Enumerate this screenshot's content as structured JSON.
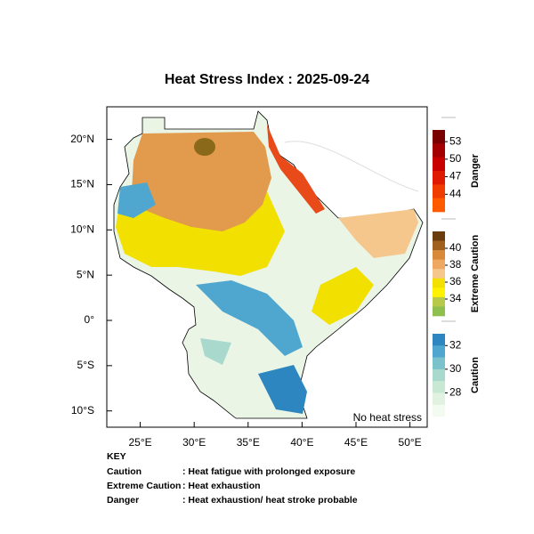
{
  "map": {
    "title": "Heat Stress Index : 2025-09-24",
    "xlim": [
      21.9,
      51.6
    ],
    "ylim": [
      -11.8,
      23.6
    ],
    "xticks": [
      {
        "value": 25,
        "label": "25°E"
      },
      {
        "value": 30,
        "label": "30°E"
      },
      {
        "value": 35,
        "label": "35°E"
      },
      {
        "value": 40,
        "label": "40°E"
      },
      {
        "value": 45,
        "label": "45°E"
      },
      {
        "value": 50,
        "label": "50°E"
      }
    ],
    "yticks": [
      {
        "value": 20,
        "label": "20°N"
      },
      {
        "value": 15,
        "label": "15°N"
      },
      {
        "value": 10,
        "label": "10°N"
      },
      {
        "value": 5,
        "label": "5°N"
      },
      {
        "value": 0,
        "label": "0°"
      },
      {
        "value": -5,
        "label": "5°S"
      },
      {
        "value": -10,
        "label": "10°S"
      }
    ],
    "annotation": "No heat stress",
    "colorbars": [
      {
        "name": "Danger",
        "ylim": [
          55,
          41
        ],
        "ticks": [
          53,
          50,
          47,
          44
        ],
        "colors": [
          "#7a0000",
          "#a50000",
          "#c80000",
          "#e01a00",
          "#f03c00",
          "#ff5a00"
        ]
      },
      {
        "name": "Extreme Caution",
        "ylim": [
          42,
          32
        ],
        "ticks": [
          40,
          38,
          36,
          34
        ],
        "colors": [
          "#6b3d0e",
          "#a0601e",
          "#d88a3a",
          "#eea860",
          "#f5c78c",
          "#f2e000",
          "#fff200",
          "#b6c94a",
          "#8fbf4e"
        ]
      },
      {
        "name": "Caution",
        "ylim": [
          33,
          26
        ],
        "ticks": [
          32,
          30,
          28
        ],
        "colors": [
          "#2e86c1",
          "#4fa6cf",
          "#7bc2cc",
          "#a9d8cd",
          "#c9e8d4",
          "#e2f2e1",
          "#f3faef"
        ]
      }
    ]
  },
  "key": {
    "title": "KEY",
    "rows": [
      [
        "Caution",
        ": Heat fatigue with prolonged exposure"
      ],
      [
        "Extreme Caution",
        ": Heat exhaustion"
      ],
      [
        "Danger",
        ": Heat exhaustion/ heat stroke probable"
      ]
    ]
  }
}
